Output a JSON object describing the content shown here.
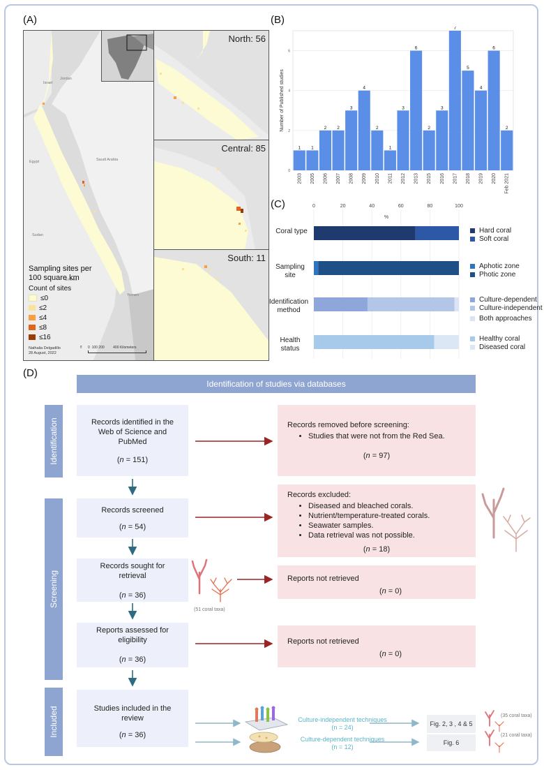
{
  "panels": {
    "a": "(A)",
    "b": "(B)",
    "c": "(C)",
    "d": "(D)"
  },
  "map": {
    "insets": [
      {
        "label": "North: 56"
      },
      {
        "label": "Central: 85"
      },
      {
        "label": "South: 11"
      }
    ],
    "legend_title_1": "Sampling sites per",
    "legend_title_2": "100 square km",
    "legend_subtitle": "Count of sites",
    "legend_items": [
      "≤0",
      "≤2",
      "≤4",
      "≤8",
      "≤16"
    ],
    "legend_colors": [
      "#fdfbd3",
      "#fde09a",
      "#f9a03c",
      "#e0651b",
      "#9e3a06"
    ],
    "countries": [
      "Israel",
      "Jordan",
      "Egypt",
      "Saudi Arabia",
      "Sudan",
      "Eritrea",
      "Yemen"
    ],
    "credit_1": "Nathalia Delgadillo",
    "credit_2": "28 August, 2022",
    "scale_labels": [
      "0",
      "100",
      "200",
      "400 Kilometers"
    ]
  },
  "chart_data": [
    {
      "type": "bar",
      "title": "",
      "xlabel": "",
      "ylabel": "Number of Published studies",
      "categories": [
        "2003",
        "2005",
        "2006",
        "2007",
        "2008",
        "2009",
        "2010",
        "2011",
        "2012",
        "2013",
        "2015",
        "2016",
        "2017",
        "2018",
        "2019",
        "2020",
        "Feb 2021"
      ],
      "values": [
        1,
        1,
        2,
        2,
        3,
        4,
        2,
        1,
        3,
        6,
        2,
        3,
        7,
        5,
        4,
        6,
        2
      ],
      "ylim": [
        0,
        7
      ],
      "yticks": [
        0,
        2,
        4,
        6
      ],
      "color": "#5b8ee6"
    },
    {
      "type": "bar",
      "orientation": "horizontal-stacked",
      "xlabel": "%",
      "xticks": [
        0,
        20,
        40,
        60,
        80,
        100
      ],
      "xlim": [
        0,
        100
      ],
      "groups": [
        {
          "label": "Coral type",
          "segments": [
            {
              "name": "Hard coral",
              "value": 70,
              "color": "#1f3a6e"
            },
            {
              "name": "Soft coral",
              "value": 30,
              "color": "#2d58a6"
            }
          ]
        },
        {
          "label": "Sampling site",
          "segments": [
            {
              "name": "Aphotic zone",
              "value": 3,
              "color": "#2f74c0"
            },
            {
              "name": "Photic zone",
              "value": 97,
              "color": "#1e4f85"
            }
          ]
        },
        {
          "label": "Identification method",
          "segments": [
            {
              "name": "Culture-dependent",
              "value": 37,
              "color": "#8ea6da"
            },
            {
              "name": "Culture-independent",
              "value": 60,
              "color": "#b4c6e8"
            },
            {
              "name": "Both approaches",
              "value": 3,
              "color": "#dbe4f4"
            }
          ]
        },
        {
          "label": "Health status",
          "segments": [
            {
              "name": "Healthy coral",
              "value": 83,
              "color": "#a7c9ea"
            },
            {
              "name": "Diseased coral",
              "value": 17,
              "color": "#dce7f5"
            }
          ]
        }
      ]
    }
  ],
  "prisma": {
    "header": "Identification of studies via databases",
    "tabs": {
      "identification": "Identification",
      "screening": "Screening",
      "included": "Included"
    },
    "identified": {
      "text1": "Records identified in the",
      "text2": "Web of Science and",
      "text3": "PubMed",
      "n_label": "n",
      "n_value": " = 151)"
    },
    "removed": {
      "title": "Records removed before screening:",
      "bullet": "Studies that were not from the Red Sea.",
      "n_label": "n",
      "n_value": " = 97)"
    },
    "screened": {
      "text": "Records screened",
      "n_label": "n",
      "n_value": " = 54)"
    },
    "excluded": {
      "title": "Records excluded:",
      "bullets": [
        "Diseased and bleached corals.",
        "Nutrient/temperature-treated corals.",
        "Seawater samples.",
        "Data retrieval was not possible."
      ],
      "n_label": "n",
      "n_value": " = 18)"
    },
    "sought": {
      "text1": "Records sought for",
      "text2": "retrieval",
      "n_label": "n",
      "n_value": " = 36)"
    },
    "not_retrieved_1": {
      "title": "Reports not retrieved",
      "n_label": "n",
      "n_value": " = 0)"
    },
    "assessed": {
      "text1": "Reports assessed for",
      "text2": "eligibility",
      "n_label": "n",
      "n_value": " = 36)"
    },
    "not_retrieved_2": {
      "title": "Reports not retrieved",
      "n_label": "n",
      "n_value": " = 0)"
    },
    "included": {
      "text1": "Studies included in the",
      "text2": "review",
      "n_label": "n",
      "n_value": " = 36)"
    },
    "coral_taxa_51": "(51 coral taxa)",
    "culture_independent": {
      "label": "Culture-independent techniques",
      "n": "(n = 24)",
      "figs": "Fig. 2, 3 , 4 & 5",
      "taxa": "(35 coral taxa)"
    },
    "culture_dependent": {
      "label": "Culture-dependent techniques",
      "n": "(n = 12)",
      "figs": "Fig. 6",
      "taxa": "(21 coral taxa)"
    },
    "open_paren": "("
  }
}
